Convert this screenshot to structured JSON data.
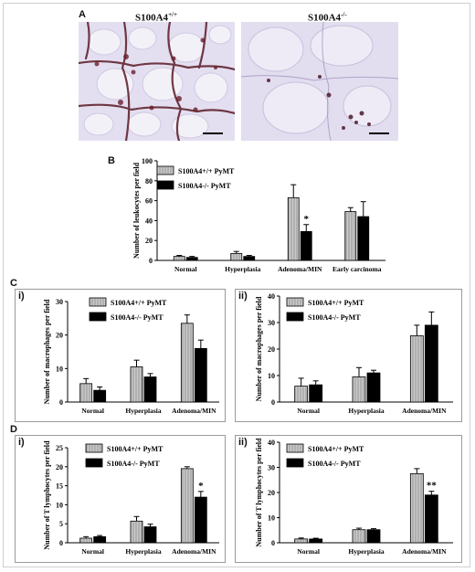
{
  "panels": {
    "A": "A",
    "B": "B",
    "C": "C",
    "D": "D",
    "Ci": "i)",
    "Cii": "ii)",
    "Di": "i)",
    "Dii": "ii)"
  },
  "micrographs": {
    "left_title": "S100A4",
    "left_sup": "+/+",
    "right_title": "S100A4",
    "right_sup": "-/-"
  },
  "legend_text": {
    "wt": "S100A4+/+ PyMT",
    "ko": "S100A4-/- PyMT"
  },
  "colors": {
    "wt_fill": "#c9c9c9",
    "ko_fill": "#000000",
    "tissue_pink": "#ddd8ee",
    "stain_brown": "#5a1a26"
  },
  "chart_data": [
    {
      "id": "B",
      "type": "bar",
      "ylabel": "Number of leukocytes per field",
      "ylim": [
        0,
        100
      ],
      "yticks": [
        0,
        20,
        40,
        60,
        80,
        100
      ],
      "categories": [
        "Normal",
        "Hyperplasia",
        "Adenoma/MIN",
        "Early carcinoma"
      ],
      "series": [
        {
          "name": "S100A4+/+ PyMT",
          "values": [
            4,
            7,
            63,
            49
          ],
          "errors": [
            1,
            2,
            13,
            4
          ]
        },
        {
          "name": "S100A4-/- PyMT",
          "values": [
            3,
            4,
            29,
            44
          ],
          "errors": [
            1,
            1,
            7,
            15
          ]
        }
      ],
      "annotations": [
        {
          "category": 2,
          "series": 1,
          "text": "*"
        }
      ]
    },
    {
      "id": "C-i",
      "type": "bar",
      "ylabel": "Number of macrophages per field",
      "ylim": [
        0,
        30
      ],
      "yticks": [
        0,
        10,
        20,
        30
      ],
      "categories": [
        "Normal",
        "Hyperplasia",
        "Adenoma/MIN"
      ],
      "series": [
        {
          "name": "S100A4+/+ PyMT",
          "values": [
            5.5,
            10.5,
            23.5
          ],
          "errors": [
            1.5,
            2,
            2.5
          ]
        },
        {
          "name": "S100A4-/- PyMT",
          "values": [
            3.5,
            7.5,
            16
          ],
          "errors": [
            1,
            1,
            2.5
          ]
        }
      ],
      "annotations": []
    },
    {
      "id": "C-ii",
      "type": "bar",
      "ylabel": "Number of macrophages per field",
      "ylim": [
        0,
        40
      ],
      "yticks": [
        0,
        10,
        20,
        30,
        40
      ],
      "categories": [
        "Normal",
        "Hyperplasia",
        "Adenoma/MIN"
      ],
      "series": [
        {
          "name": "S100A4+/+ PyMT",
          "values": [
            6,
            9.5,
            25
          ],
          "errors": [
            3,
            3.5,
            4
          ]
        },
        {
          "name": "S100A4-/- PyMT",
          "values": [
            6.5,
            11,
            29
          ],
          "errors": [
            1.5,
            1,
            5
          ]
        }
      ],
      "annotations": []
    },
    {
      "id": "D-i",
      "type": "bar",
      "ylabel": "Number of T lymphocytes per field",
      "ylim": [
        0,
        25
      ],
      "yticks": [
        0,
        5,
        10,
        15,
        20,
        25
      ],
      "categories": [
        "Normal",
        "Hyperplasia",
        "Adenoma/MIN"
      ],
      "series": [
        {
          "name": "S100A4+/+ PyMT",
          "values": [
            1.2,
            5.7,
            19.5
          ],
          "errors": [
            0.4,
            1.2,
            0.5
          ]
        },
        {
          "name": "S100A4-/- PyMT",
          "values": [
            1.6,
            4.2,
            12
          ],
          "errors": [
            0.3,
            0.7,
            1.5
          ]
        }
      ],
      "annotations": [
        {
          "category": 2,
          "series": 1,
          "text": "*"
        }
      ]
    },
    {
      "id": "D-ii",
      "type": "bar",
      "ylabel": "Number of T lymphocytes per field",
      "ylim": [
        0,
        40
      ],
      "yticks": [
        0,
        10,
        20,
        30,
        40
      ],
      "categories": [
        "Normal",
        "Hyperplasia",
        "Adenoma/MIN"
      ],
      "series": [
        {
          "name": "S100A4+/+ PyMT",
          "values": [
            1.5,
            5.2,
            27.5
          ],
          "errors": [
            0.4,
            0.6,
            2
          ]
        },
        {
          "name": "S100A4-/- PyMT",
          "values": [
            1.5,
            5.2,
            19
          ],
          "errors": [
            0.3,
            0.4,
            1.5
          ]
        }
      ],
      "annotations": [
        {
          "category": 2,
          "series": 1,
          "text": "**"
        }
      ]
    }
  ]
}
